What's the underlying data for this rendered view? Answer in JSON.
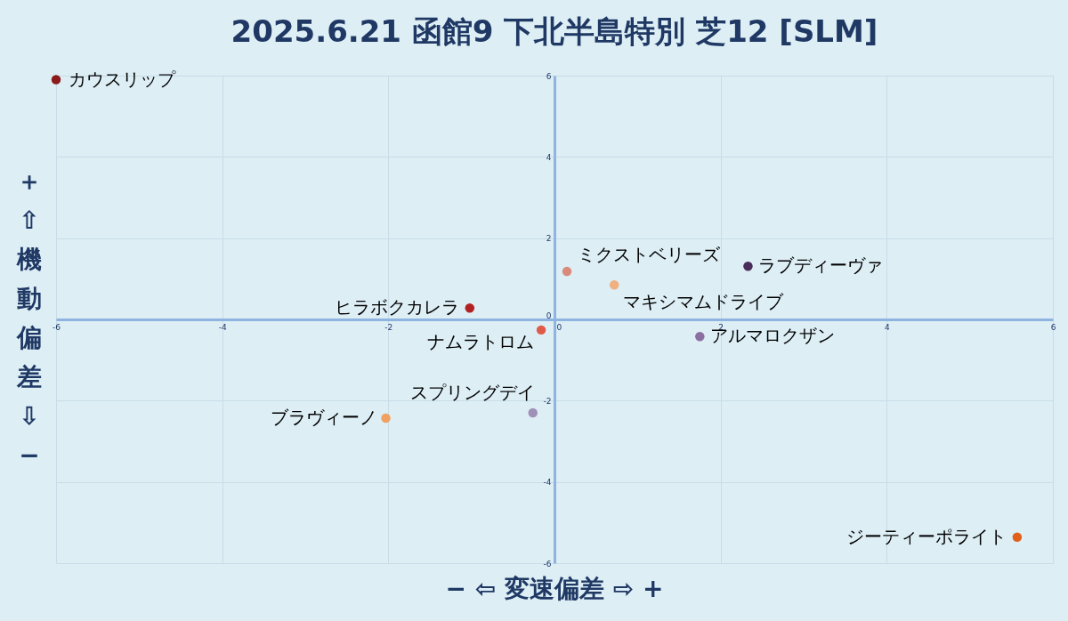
{
  "chart_data": {
    "type": "scatter",
    "title": "2025.6.21 函館9 下北半島特別 芝12 [SLM]",
    "xlabel": "− ⇦ 変速偏差 ⇨ +",
    "ylabel": "＋ ⇧ 機動偏差 ⇩ −",
    "x": [
      -6.0,
      0.15,
      2.33,
      0.72,
      -1.02,
      -0.16,
      1.75,
      -0.26,
      -2.03,
      5.57
    ],
    "series": [
      {
        "values": [
          5.9,
          1.18,
          1.31,
          0.85,
          0.28,
          -0.26,
          -0.42,
          -2.3,
          -2.43,
          -5.36
        ],
        "colors": [
          "#8b1a1a",
          "#d98a7a",
          "#4a2c5a",
          "#f0b080",
          "#b22222",
          "#e05a4a",
          "#8a70a0",
          "#a090b8",
          "#f0a060",
          "#e0601a"
        ],
        "value_labels": [
          "カウスリップ",
          "ミクストベリーズ",
          "ラブディーヴァ",
          "マキシマムドライブ",
          "ヒラボクカレラ",
          "ナムラトロム",
          "アルマロクザン",
          "スプリングデイ",
          "ブラヴィーノ",
          "ジーティーポライト"
        ]
      }
    ],
    "xlim": [
      -6,
      6
    ],
    "ylim": [
      -6,
      6
    ],
    "xticks": [
      -6,
      -4,
      -2,
      0,
      2,
      4,
      6
    ],
    "yticks": [
      -6,
      -4,
      -2,
      0,
      2,
      4,
      6
    ],
    "grid": true,
    "marker": "circle"
  }
}
